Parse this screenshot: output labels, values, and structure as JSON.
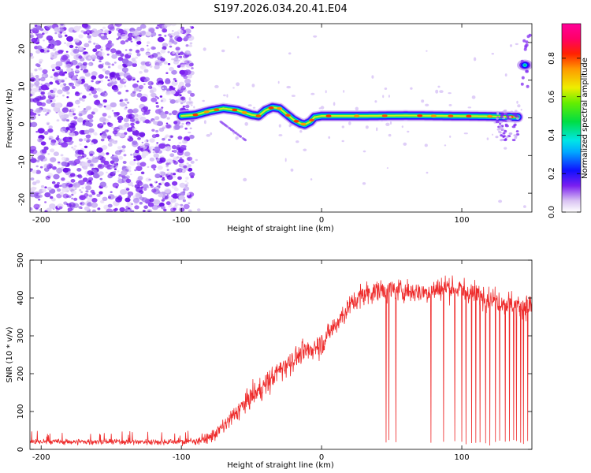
{
  "title": "S197.2026.034.20.41.E04",
  "chart_data": [
    {
      "type": "heatmap",
      "xlabel": "Height of straight line (km)",
      "ylabel": "Frequency (Hz)",
      "xlim": [
        -208,
        150
      ],
      "ylim": [
        -25,
        25
      ],
      "xticks": [
        -200,
        -100,
        0,
        100
      ],
      "yticks": [
        -20,
        -10,
        0,
        10,
        20
      ],
      "colorbar": {
        "label": "Normalized spectral amplitude",
        "range": [
          0.0,
          0.98
        ],
        "ticks": [
          0.0,
          0.2,
          0.4,
          0.6,
          0.8
        ]
      },
      "ridge": {
        "x": [
          -100,
          -90,
          -80,
          -70,
          -60,
          -50,
          -45,
          -40,
          -35,
          -30,
          -25,
          -20,
          -15,
          -12,
          -8,
          -5,
          0,
          10,
          30,
          60,
          90,
          120,
          140
        ],
        "freq": [
          0.5,
          0.8,
          1.8,
          2.5,
          2.0,
          0.8,
          0.5,
          2.0,
          2.8,
          2.5,
          1.0,
          -0.5,
          -1.5,
          -1.8,
          -1.0,
          0.2,
          0.5,
          0.5,
          0.5,
          0.6,
          0.5,
          0.4,
          0.2
        ]
      },
      "noise_region": {
        "x": [
          -208,
          -92
        ],
        "amplitude": "0.1-0.5"
      },
      "edge_feature": {
        "x": 145,
        "freq": 14
      }
    },
    {
      "type": "line",
      "xlabel": "Height of straight line (km)",
      "ylabel": "SNR (10 * v/v)",
      "xlim": [
        -208,
        150
      ],
      "ylim": [
        0,
        500
      ],
      "xticks": [
        -200,
        -100,
        0,
        100
      ],
      "yticks": [
        0,
        100,
        200,
        300,
        400,
        500
      ],
      "color": "#ee2b2b",
      "series": [
        {
          "name": "SNR",
          "x": [
            -208,
            -180,
            -150,
            -120,
            -100,
            -90,
            -80,
            -70,
            -60,
            -50,
            -40,
            -30,
            -20,
            -10,
            0,
            10,
            20,
            30,
            40,
            50,
            60,
            70,
            80,
            90,
            100,
            110,
            120,
            130,
            140,
            150
          ],
          "mean": [
            20,
            20,
            20,
            20,
            20,
            22,
            30,
            60,
            100,
            140,
            170,
            210,
            240,
            260,
            280,
            330,
            380,
            410,
            420,
            420,
            420,
            415,
            420,
            430,
            420,
            410,
            400,
            390,
            380,
            380
          ],
          "spread": [
            15,
            15,
            15,
            15,
            15,
            18,
            30,
            40,
            50,
            60,
            60,
            60,
            60,
            60,
            60,
            60,
            60,
            60,
            60,
            60,
            60,
            60,
            60,
            60,
            60,
            60,
            60,
            60,
            60,
            60
          ]
        }
      ],
      "dropouts_x": [
        46,
        48,
        53,
        78,
        87,
        95,
        100,
        103,
        107,
        110,
        113,
        117,
        120,
        124,
        127,
        131,
        134,
        137,
        139,
        142,
        144,
        147
      ],
      "dropout_floor": 10
    }
  ]
}
